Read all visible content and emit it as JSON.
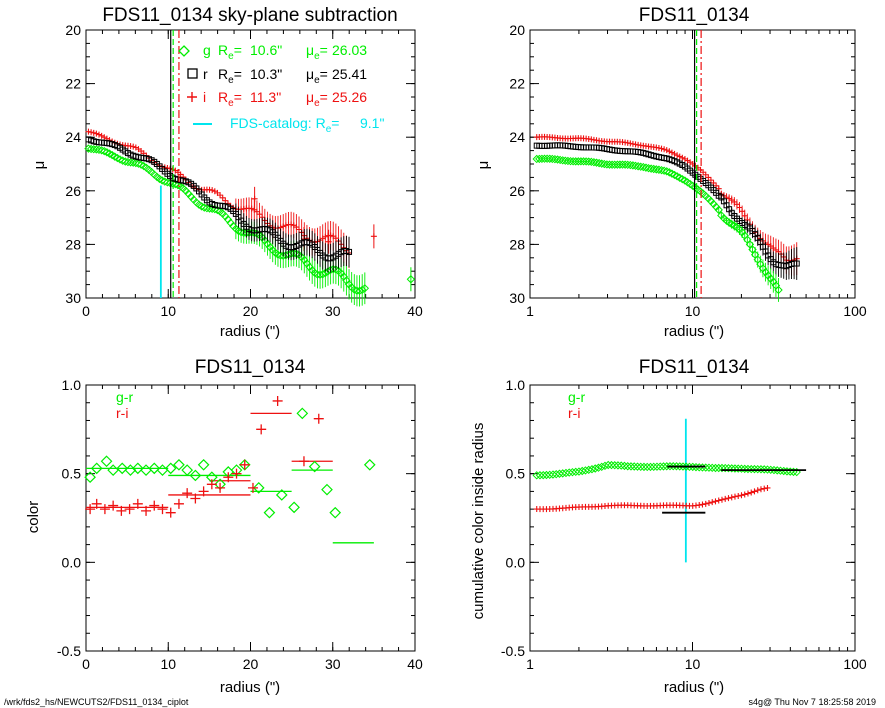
{
  "footer": {
    "left": "/wrk/fds2_hs/NEWCUTS2/FDS11_0134_ciplot",
    "right": "s4g@  Thu Nov  7 18:25:58 2019"
  },
  "colors": {
    "g": "#00ee00",
    "r": "#000000",
    "i": "#ee1111",
    "catalog": "#00e5ee"
  },
  "chart_data": [
    {
      "type": "scatter",
      "title": "FDS11_0134 sky-plane subtraction",
      "xlabel": "radius (\")",
      "ylabel": "μ",
      "xlim": [
        0,
        40
      ],
      "ylim": [
        30,
        20
      ],
      "xticks": [
        "0",
        "10",
        "20",
        "30",
        "40"
      ],
      "yticks": [
        "20",
        "22",
        "24",
        "26",
        "28",
        "30"
      ],
      "legend": [
        {
          "band": "g",
          "marker": "diamond",
          "Re": "10.6\"",
          "mue": "26.03",
          "color": "#00ee00"
        },
        {
          "band": "r",
          "marker": "square",
          "Re": "10.3\"",
          "mue": "25.41",
          "color": "#000000"
        },
        {
          "band": "i",
          "marker": "plus",
          "Re": "11.3\"",
          "mue": "25.26",
          "color": "#ee1111"
        }
      ],
      "catalog_label": "FDS-catalog: R",
      "catalog_value": "9.1\"",
      "vlines": [
        {
          "band": "r",
          "x": 10.3,
          "style": "solid"
        },
        {
          "band": "g",
          "x": 10.6,
          "style": "dashed"
        },
        {
          "band": "i",
          "x": 11.3,
          "style": "dashdot"
        },
        {
          "band": "catalog",
          "x": 9.1,
          "style": "solid",
          "partial": true
        }
      ],
      "series": [
        {
          "name": "g",
          "profile": [
            [
              0.3,
              24.4
            ],
            [
              2,
              24.55
            ],
            [
              4,
              24.75
            ],
            [
              6,
              25.0
            ],
            [
              8,
              25.3
            ],
            [
              10,
              25.65
            ],
            [
              12,
              26.05
            ],
            [
              14,
              26.45
            ],
            [
              16,
              26.85
            ],
            [
              18,
              27.25
            ],
            [
              20,
              27.6
            ],
            [
              22,
              28.0
            ],
            [
              24,
              28.3
            ],
            [
              26,
              28.6
            ],
            [
              28,
              28.9
            ],
            [
              30,
              29.1
            ],
            [
              32,
              29.4
            ],
            [
              34,
              29.6
            ]
          ],
          "isolated": [
            [
              39.5,
              29.3
            ]
          ]
        },
        {
          "name": "r",
          "profile": [
            [
              0.3,
              24.05
            ],
            [
              2,
              24.2
            ],
            [
              4,
              24.4
            ],
            [
              6,
              24.65
            ],
            [
              8,
              24.95
            ],
            [
              10,
              25.3
            ],
            [
              12,
              25.7
            ],
            [
              14,
              26.1
            ],
            [
              16,
              26.5
            ],
            [
              18,
              26.9
            ],
            [
              20,
              27.3
            ],
            [
              22,
              27.6
            ],
            [
              24,
              27.85
            ],
            [
              26,
              28.05
            ],
            [
              28,
              28.2
            ],
            [
              30,
              28.35
            ],
            [
              32,
              28.5
            ]
          ],
          "isolated": []
        },
        {
          "name": "i",
          "profile": [
            [
              0.3,
              23.8
            ],
            [
              2,
              24.0
            ],
            [
              4,
              24.2
            ],
            [
              6,
              24.45
            ],
            [
              8,
              24.8
            ],
            [
              10,
              25.2
            ],
            [
              12,
              25.55
            ],
            [
              14,
              25.9
            ],
            [
              16,
              26.2
            ],
            [
              18,
              26.5
            ],
            [
              20,
              26.8
            ],
            [
              22,
              27.1
            ],
            [
              24,
              27.35
            ],
            [
              26,
              27.55
            ],
            [
              28,
              27.75
            ],
            [
              30,
              27.9
            ],
            [
              32,
              28.1
            ]
          ],
          "isolated": [
            [
              20.5,
              26.3
            ],
            [
              26.5,
              27.8
            ],
            [
              29.5,
              27.9
            ],
            [
              35,
              27.7
            ]
          ]
        }
      ]
    },
    {
      "type": "scatter",
      "title": "FDS11_0134",
      "xlabel": "radius (\")",
      "ylabel": "μ",
      "xscale": "log",
      "xlim": [
        1,
        100
      ],
      "ylim": [
        30,
        20
      ],
      "xticks": [
        "1",
        "10",
        "100"
      ],
      "yticks": [
        "20",
        "22",
        "24",
        "26",
        "28",
        "30"
      ],
      "vlines": [
        {
          "band": "r",
          "x": 10.3,
          "style": "solid"
        },
        {
          "band": "g",
          "x": 10.6,
          "style": "dashed"
        },
        {
          "band": "i",
          "x": 11.3,
          "style": "dashdot"
        }
      ],
      "series": [
        {
          "name": "g",
          "profile": [
            [
              1.1,
              24.8
            ],
            [
              2,
              24.9
            ],
            [
              3,
              25.0
            ],
            [
              5,
              25.1
            ],
            [
              7,
              25.3
            ],
            [
              9,
              25.6
            ],
            [
              11,
              26.0
            ],
            [
              13,
              26.4
            ],
            [
              15,
              26.8
            ],
            [
              18,
              27.3
            ],
            [
              21,
              27.8
            ],
            [
              24,
              28.3
            ],
            [
              28,
              28.9
            ],
            [
              32,
              29.5
            ],
            [
              35,
              30.0
            ]
          ]
        },
        {
          "name": "r",
          "profile": [
            [
              1.1,
              24.3
            ],
            [
              2,
              24.35
            ],
            [
              3,
              24.45
            ],
            [
              5,
              24.6
            ],
            [
              7,
              24.8
            ],
            [
              9,
              25.1
            ],
            [
              11,
              25.5
            ],
            [
              13,
              25.9
            ],
            [
              15,
              26.3
            ],
            [
              18,
              26.8
            ],
            [
              21,
              27.3
            ],
            [
              24,
              27.7
            ],
            [
              28,
              28.2
            ],
            [
              32,
              28.6
            ],
            [
              38,
              28.9
            ],
            [
              44,
              28.8
            ]
          ]
        },
        {
          "name": "i",
          "profile": [
            [
              1.1,
              24.0
            ],
            [
              2,
              24.05
            ],
            [
              3,
              24.15
            ],
            [
              5,
              24.3
            ],
            [
              7,
              24.5
            ],
            [
              9,
              24.8
            ],
            [
              11,
              25.2
            ],
            [
              13,
              25.6
            ],
            [
              15,
              26.0
            ],
            [
              18,
              26.5
            ],
            [
              21,
              27.0
            ],
            [
              24,
              27.4
            ],
            [
              28,
              27.9
            ],
            [
              32,
              28.3
            ],
            [
              38,
              28.6
            ],
            [
              44,
              28.4
            ]
          ]
        }
      ]
    },
    {
      "type": "scatter",
      "title": "FDS11_0134",
      "xlabel": "radius (\")",
      "ylabel": "color",
      "xlim": [
        0,
        40
      ],
      "ylim": [
        -0.5,
        1.0
      ],
      "xticks": [
        "0",
        "10",
        "20",
        "30",
        "40"
      ],
      "yticks": [
        "-0.5",
        "0.0",
        "0.5",
        "1.0"
      ],
      "legend": [
        {
          "name": "g-r",
          "color": "#00ee00"
        },
        {
          "name": "r-i",
          "color": "#ee1111"
        }
      ],
      "series": [
        {
          "name": "g-r",
          "marker": "diamond",
          "x": [
            0.5,
            1.3,
            2.5,
            3.3,
            4.4,
            5.4,
            6.3,
            7.3,
            8.3,
            9.3,
            10.3,
            11.3,
            12.3,
            13.3,
            14.3,
            15.3,
            16.3,
            17.3,
            18.3,
            19.3,
            21.0,
            22.3,
            23.8,
            25.3,
            26.3,
            27.8,
            29.3,
            30.3,
            34.5
          ],
          "y": [
            0.48,
            0.53,
            0.57,
            0.52,
            0.53,
            0.52,
            0.53,
            0.52,
            0.53,
            0.52,
            0.53,
            0.55,
            0.52,
            0.49,
            0.55,
            0.48,
            0.44,
            0.51,
            0.52,
            0.55,
            0.42,
            0.28,
            0.38,
            0.31,
            0.84,
            0.54,
            0.41,
            0.28,
            0.55
          ]
        },
        {
          "name": "r-i",
          "marker": "plus",
          "x": [
            0.5,
            1.3,
            2.3,
            3.3,
            4.3,
            5.3,
            6.3,
            7.3,
            8.3,
            9.3,
            10.3,
            11.3,
            12.3,
            13.3,
            14.3,
            15.3,
            16.3,
            17.3,
            18.3,
            19.3,
            20.3,
            21.3,
            23.3,
            26.5,
            28.3
          ],
          "y": [
            0.3,
            0.33,
            0.3,
            0.32,
            0.29,
            0.3,
            0.33,
            0.29,
            0.32,
            0.3,
            0.28,
            0.33,
            0.39,
            0.36,
            0.4,
            0.44,
            0.42,
            0.48,
            0.5,
            0.55,
            0.42,
            0.75,
            0.91,
            0.57,
            0.81
          ]
        }
      ],
      "segments": [
        {
          "series": "g-r",
          "x": [
            0,
            10
          ],
          "y": 0.53
        },
        {
          "series": "g-r",
          "x": [
            10,
            20
          ],
          "y": 0.49
        },
        {
          "series": "g-r",
          "x": [
            20,
            25
          ],
          "y": 0.4
        },
        {
          "series": "g-r",
          "x": [
            25,
            30
          ],
          "y": 0.52
        },
        {
          "series": "g-r",
          "x": [
            30,
            35
          ],
          "y": 0.11
        },
        {
          "series": "r-i",
          "x": [
            0,
            10
          ],
          "y": 0.31
        },
        {
          "series": "r-i",
          "x": [
            10,
            20
          ],
          "y": 0.38
        },
        {
          "series": "r-i",
          "x": [
            15,
            20
          ],
          "y": 0.46
        },
        {
          "series": "r-i",
          "x": [
            20,
            25
          ],
          "y": 0.84
        },
        {
          "series": "r-i",
          "x": [
            25,
            30
          ],
          "y": 0.57
        }
      ]
    },
    {
      "type": "scatter",
      "title": "FDS11_0134",
      "xlabel": "radius (\")",
      "ylabel": "cumulative color inside radius",
      "xscale": "log",
      "xlim": [
        1,
        100
      ],
      "ylim": [
        -0.5,
        1.0
      ],
      "xticks": [
        "1",
        "10",
        "100"
      ],
      "yticks": [
        "-0.5",
        "0.0",
        "0.5",
        "1.0"
      ],
      "legend": [
        {
          "name": "g-r",
          "color": "#00ee00"
        },
        {
          "name": "r-i",
          "color": "#ee1111"
        }
      ],
      "series": [
        {
          "name": "g-r",
          "marker": "diamond",
          "profile": [
            [
              1.1,
              0.49
            ],
            [
              1.5,
              0.5
            ],
            [
              2,
              0.51
            ],
            [
              2.5,
              0.53
            ],
            [
              3,
              0.55
            ],
            [
              4,
              0.54
            ],
            [
              6,
              0.54
            ],
            [
              8,
              0.54
            ],
            [
              10,
              0.54
            ],
            [
              14,
              0.53
            ],
            [
              20,
              0.53
            ],
            [
              30,
              0.52
            ],
            [
              45,
              0.51
            ]
          ]
        },
        {
          "name": "r-i",
          "marker": "plus",
          "profile": [
            [
              1.1,
              0.3
            ],
            [
              2,
              0.31
            ],
            [
              3,
              0.32
            ],
            [
              5,
              0.32
            ],
            [
              8,
              0.32
            ],
            [
              10,
              0.32
            ],
            [
              12,
              0.33
            ],
            [
              15,
              0.35
            ],
            [
              18,
              0.37
            ],
            [
              22,
              0.39
            ],
            [
              26,
              0.41
            ],
            [
              30,
              0.42
            ]
          ]
        }
      ],
      "segments": [
        {
          "series": "g-r-global",
          "x": [
            7,
            12
          ],
          "y": 0.54,
          "color": "#000000"
        },
        {
          "series": "g-r-total",
          "x": [
            15,
            50
          ],
          "y": 0.52,
          "color": "#000000"
        },
        {
          "series": "r-i-global",
          "x": [
            6.5,
            12
          ],
          "y": 0.28,
          "color": "#000000"
        }
      ],
      "vlines": [
        {
          "band": "catalog",
          "x": 9.1,
          "y": [
            0.0,
            0.81
          ]
        }
      ]
    }
  ]
}
